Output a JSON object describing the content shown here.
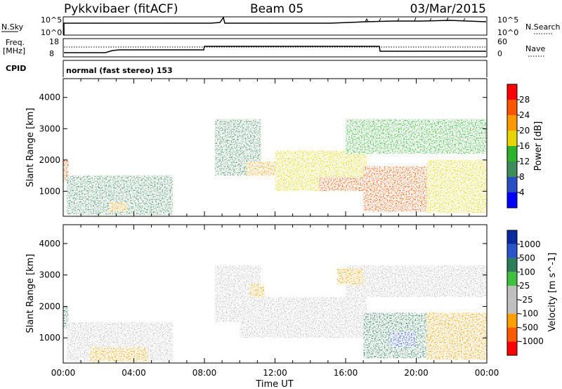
{
  "header": {
    "station": "Pykkvibaer (fitACF)",
    "beam": "Beam 05",
    "date": "03/Mar/2015"
  },
  "strip_labels": {
    "nsky": "N.Sky",
    "nsky_top": "10^5",
    "nsky_bottom": "10^0",
    "freq": "Freq.",
    "freq_unit": "[MHz]",
    "freq_top": "18",
    "freq_bottom": "8",
    "nsearch": "N.Search",
    "nsearch_top": "10^5",
    "nsearch_bottom": "10^0",
    "nave": "Nave",
    "nave_top": "60",
    "nave_bottom": "0",
    "cpid": "CPID",
    "cpid_value": "normal (fast stereo) 153"
  },
  "colors": {
    "power": [
      "#0000ff",
      "#2a4fc4",
      "#3d8c5a",
      "#2fb32f",
      "#e8d400",
      "#ff9900",
      "#ff5500",
      "#ff0000"
    ],
    "velocity": [
      "#ff0000",
      "#ff5a00",
      "#ffa000",
      "#c0c0c0",
      "#c0c0c0",
      "#3fc03f",
      "#2e7d5a",
      "#2a55c8",
      "#0a2aa0"
    ],
    "ground_scatter": "#c0c0c0"
  },
  "chart_data": [
    {
      "type": "heatmap",
      "name": "power",
      "ylabel": "Slant Range [km]",
      "yticks": [
        1000,
        2000,
        3000,
        4000
      ],
      "ylim": [
        200,
        4600
      ],
      "xticks": [
        "00:00",
        "04:00",
        "08:00",
        "12:00",
        "16:00",
        "20:00",
        "00:00"
      ],
      "xlim_hours": [
        0,
        24
      ],
      "colorbar": {
        "label": "Power [dB]",
        "ticks": [
          "4",
          "8",
          "12",
          "16",
          "20",
          "24",
          "28"
        ],
        "range": [
          0,
          32
        ]
      },
      "echo_regions": [
        {
          "t0": 0.0,
          "t1": 0.3,
          "r0": 1300,
          "r1": 2000,
          "level": 26
        },
        {
          "t0": 0.2,
          "t1": 6.2,
          "r0": 250,
          "r1": 1500,
          "level": 10
        },
        {
          "t0": 2.6,
          "t1": 3.6,
          "r0": 350,
          "r1": 650,
          "level": 22
        },
        {
          "t0": 8.6,
          "t1": 11.2,
          "r0": 1500,
          "r1": 3300,
          "level": 8
        },
        {
          "t0": 10.4,
          "t1": 12.2,
          "r0": 1500,
          "r1": 1950,
          "level": 20
        },
        {
          "t0": 12.0,
          "t1": 17.2,
          "r0": 1000,
          "r1": 2300,
          "level": 18
        },
        {
          "t0": 14.5,
          "t1": 17.2,
          "r0": 1000,
          "r1": 1450,
          "level": 27
        },
        {
          "t0": 16.0,
          "t1": 24.0,
          "r0": 2200,
          "r1": 3300,
          "level": 12
        },
        {
          "t0": 17.0,
          "t1": 20.6,
          "r0": 350,
          "r1": 1800,
          "level": 26
        },
        {
          "t0": 20.6,
          "t1": 24.0,
          "r0": 300,
          "r1": 2000,
          "level": 18
        }
      ]
    },
    {
      "type": "heatmap",
      "name": "velocity",
      "ylabel": "Slant Range [km]",
      "yticks": [
        1000,
        2000,
        3000,
        4000
      ],
      "ylim": [
        200,
        4600
      ],
      "xticks": [
        "00:00",
        "04:00",
        "08:00",
        "12:00",
        "16:00",
        "20:00",
        "00:00"
      ],
      "xlim_hours": [
        0,
        24
      ],
      "xlabel": "Time UT",
      "colorbar": {
        "label": "Velocity [m s^-1]",
        "ticks": [
          "-1000",
          "-500",
          "-100",
          "-25",
          "25",
          "100",
          "500",
          "1000"
        ],
        "range": [
          -1500,
          1500
        ]
      },
      "echo_regions": [
        {
          "t0": 0.0,
          "t1": 0.3,
          "r0": 1300,
          "r1": 2000,
          "v": 300
        },
        {
          "t0": 0.2,
          "t1": 6.2,
          "r0": 250,
          "r1": 1500,
          "v": 0
        },
        {
          "t0": 1.5,
          "t1": 4.8,
          "r0": 250,
          "r1": 700,
          "v": -200
        },
        {
          "t0": 8.6,
          "t1": 11.2,
          "r0": 1500,
          "r1": 3300,
          "v": 0
        },
        {
          "t0": 10.6,
          "t1": 11.4,
          "r0": 2200,
          "r1": 2700,
          "v": -400
        },
        {
          "t0": 10.0,
          "t1": 17.2,
          "r0": 1000,
          "r1": 2300,
          "v": 0
        },
        {
          "t0": 16.0,
          "t1": 24.0,
          "r0": 2300,
          "r1": 3300,
          "v": 0
        },
        {
          "t0": 15.5,
          "t1": 17.0,
          "r0": 2700,
          "r1": 3200,
          "v": -200
        },
        {
          "t0": 17.0,
          "t1": 20.6,
          "r0": 350,
          "r1": 1800,
          "v": 150
        },
        {
          "t0": 18.5,
          "t1": 20.0,
          "r0": 700,
          "r1": 1200,
          "v": 700
        },
        {
          "t0": 20.6,
          "t1": 24.0,
          "r0": 300,
          "r1": 1800,
          "v": -150
        }
      ]
    }
  ]
}
